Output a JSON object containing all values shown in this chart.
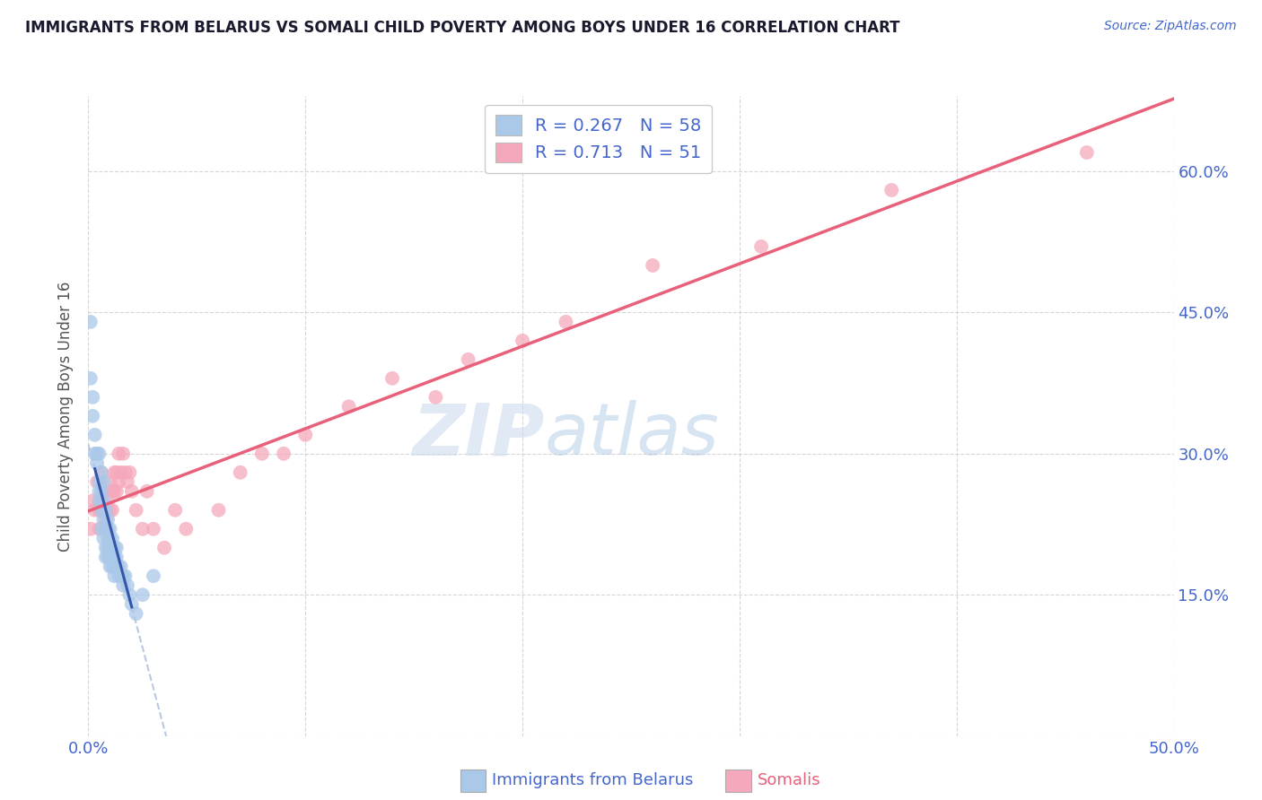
{
  "title": "IMMIGRANTS FROM BELARUS VS SOMALI CHILD POVERTY AMONG BOYS UNDER 16 CORRELATION CHART",
  "source": "Source: ZipAtlas.com",
  "xlabel_blue": "Immigrants from Belarus",
  "xlabel_pink": "Somalis",
  "ylabel": "Child Poverty Among Boys Under 16",
  "xlim": [
    0.0,
    0.5
  ],
  "ylim": [
    0.0,
    0.68
  ],
  "legend_blue_r": "0.267",
  "legend_blue_n": "58",
  "legend_pink_r": "0.713",
  "legend_pink_n": "51",
  "blue_color": "#aac8e8",
  "pink_color": "#f5a8bb",
  "blue_line_color": "#3355aa",
  "pink_line_color": "#e8607a",
  "blue_dashed_color": "#aabbdd",
  "watermark_zip": "ZIP",
  "watermark_atlas": "atlas",
  "title_color": "#1a1a2e",
  "axis_label_color": "#4466cc",
  "pink_label_color": "#e8607a",
  "blue_scatter": [
    [
      0.001,
      0.44
    ],
    [
      0.001,
      0.38
    ],
    [
      0.002,
      0.36
    ],
    [
      0.002,
      0.34
    ],
    [
      0.003,
      0.32
    ],
    [
      0.003,
      0.3
    ],
    [
      0.004,
      0.3
    ],
    [
      0.004,
      0.29
    ],
    [
      0.005,
      0.3
    ],
    [
      0.005,
      0.27
    ],
    [
      0.005,
      0.26
    ],
    [
      0.005,
      0.25
    ],
    [
      0.006,
      0.28
    ],
    [
      0.006,
      0.26
    ],
    [
      0.006,
      0.24
    ],
    [
      0.006,
      0.22
    ],
    [
      0.007,
      0.27
    ],
    [
      0.007,
      0.25
    ],
    [
      0.007,
      0.23
    ],
    [
      0.007,
      0.21
    ],
    [
      0.008,
      0.24
    ],
    [
      0.008,
      0.22
    ],
    [
      0.008,
      0.2
    ],
    [
      0.008,
      0.19
    ],
    [
      0.009,
      0.23
    ],
    [
      0.009,
      0.22
    ],
    [
      0.009,
      0.21
    ],
    [
      0.009,
      0.2
    ],
    [
      0.009,
      0.19
    ],
    [
      0.01,
      0.22
    ],
    [
      0.01,
      0.21
    ],
    [
      0.01,
      0.2
    ],
    [
      0.01,
      0.19
    ],
    [
      0.01,
      0.18
    ],
    [
      0.011,
      0.21
    ],
    [
      0.011,
      0.2
    ],
    [
      0.011,
      0.19
    ],
    [
      0.011,
      0.18
    ],
    [
      0.012,
      0.2
    ],
    [
      0.012,
      0.19
    ],
    [
      0.012,
      0.18
    ],
    [
      0.012,
      0.17
    ],
    [
      0.013,
      0.2
    ],
    [
      0.013,
      0.19
    ],
    [
      0.013,
      0.18
    ],
    [
      0.014,
      0.18
    ],
    [
      0.014,
      0.17
    ],
    [
      0.015,
      0.18
    ],
    [
      0.015,
      0.17
    ],
    [
      0.016,
      0.17
    ],
    [
      0.016,
      0.16
    ],
    [
      0.017,
      0.17
    ],
    [
      0.018,
      0.16
    ],
    [
      0.019,
      0.15
    ],
    [
      0.02,
      0.14
    ],
    [
      0.022,
      0.13
    ],
    [
      0.025,
      0.15
    ],
    [
      0.03,
      0.17
    ]
  ],
  "pink_scatter": [
    [
      0.001,
      0.22
    ],
    [
      0.002,
      0.25
    ],
    [
      0.003,
      0.24
    ],
    [
      0.004,
      0.27
    ],
    [
      0.005,
      0.24
    ],
    [
      0.005,
      0.22
    ],
    [
      0.006,
      0.28
    ],
    [
      0.006,
      0.25
    ],
    [
      0.007,
      0.26
    ],
    [
      0.007,
      0.24
    ],
    [
      0.008,
      0.23
    ],
    [
      0.008,
      0.22
    ],
    [
      0.009,
      0.25
    ],
    [
      0.01,
      0.27
    ],
    [
      0.01,
      0.24
    ],
    [
      0.011,
      0.26
    ],
    [
      0.011,
      0.24
    ],
    [
      0.012,
      0.28
    ],
    [
      0.012,
      0.26
    ],
    [
      0.013,
      0.28
    ],
    [
      0.013,
      0.26
    ],
    [
      0.014,
      0.3
    ],
    [
      0.014,
      0.27
    ],
    [
      0.015,
      0.28
    ],
    [
      0.016,
      0.3
    ],
    [
      0.017,
      0.28
    ],
    [
      0.018,
      0.27
    ],
    [
      0.019,
      0.28
    ],
    [
      0.02,
      0.26
    ],
    [
      0.022,
      0.24
    ],
    [
      0.025,
      0.22
    ],
    [
      0.027,
      0.26
    ],
    [
      0.03,
      0.22
    ],
    [
      0.035,
      0.2
    ],
    [
      0.04,
      0.24
    ],
    [
      0.045,
      0.22
    ],
    [
      0.06,
      0.24
    ],
    [
      0.07,
      0.28
    ],
    [
      0.08,
      0.3
    ],
    [
      0.09,
      0.3
    ],
    [
      0.1,
      0.32
    ],
    [
      0.12,
      0.35
    ],
    [
      0.14,
      0.38
    ],
    [
      0.16,
      0.36
    ],
    [
      0.175,
      0.4
    ],
    [
      0.2,
      0.42
    ],
    [
      0.22,
      0.44
    ],
    [
      0.26,
      0.5
    ],
    [
      0.31,
      0.52
    ],
    [
      0.37,
      0.58
    ],
    [
      0.46,
      0.62
    ]
  ]
}
